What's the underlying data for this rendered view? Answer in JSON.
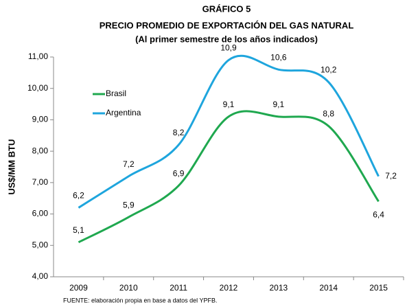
{
  "chart_data": {
    "type": "line",
    "title": "GRÁFICO 5",
    "subtitle": [
      "PRECIO PROMEDIO DE EXPORTACIÓN DEL GAS NATURAL",
      "(Al primer semestre de los años indicados)"
    ],
    "ylabel": "US$/MM BTU",
    "source": "FUENTE: elaboración propia en base a datos del YPFB.",
    "categories": [
      "2009",
      "2010",
      "2011",
      "2012",
      "2013",
      "2014",
      "2015"
    ],
    "series": [
      {
        "name": "Brasil",
        "color": "#1fa84f",
        "values": [
          5.1,
          5.9,
          6.9,
          9.1,
          9.1,
          8.8,
          6.4
        ],
        "value_labels": [
          "5,1",
          "5,9",
          "6,9",
          "9,1",
          "9,1",
          "8,8",
          "6,4"
        ]
      },
      {
        "name": "Argentina",
        "color": "#1ea5dd",
        "values": [
          6.2,
          7.2,
          8.2,
          10.9,
          10.6,
          10.2,
          7.2
        ],
        "value_labels": [
          "6,2",
          "7,2",
          "8,2",
          "10,9",
          "10,6",
          "10,2",
          "7,2"
        ]
      }
    ],
    "ylim": [
      4,
      11
    ],
    "yticks": [
      {
        "value": 4,
        "label": "4,00"
      },
      {
        "value": 5,
        "label": "5,00"
      },
      {
        "value": 6,
        "label": "6,00"
      },
      {
        "value": 7,
        "label": "7,00"
      },
      {
        "value": 8,
        "label": "8,00"
      },
      {
        "value": 9,
        "label": "9,00"
      },
      {
        "value": 10,
        "label": "10,00"
      },
      {
        "value": 11,
        "label": "11,00"
      }
    ],
    "grid": false,
    "smooth": true
  }
}
